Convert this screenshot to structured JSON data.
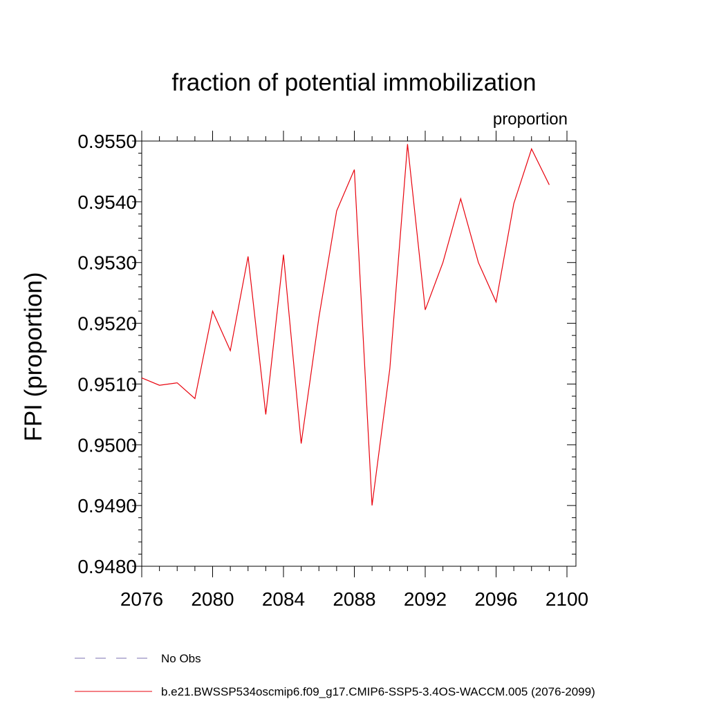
{
  "chart_data": {
    "type": "line",
    "title": "fraction of potential immobilization",
    "units_label": "proportion",
    "ylabel": "FPI  (proportion)",
    "xlabel": "",
    "xlim": [
      2076,
      2100
    ],
    "ylim": [
      0.948,
      0.955
    ],
    "x_ticks": [
      2076,
      2080,
      2084,
      2088,
      2092,
      2096,
      2100
    ],
    "x_tick_labels": [
      "2076",
      "2080",
      "2084",
      "2088",
      "2092",
      "2096",
      "2100"
    ],
    "y_ticks": [
      0.948,
      0.949,
      0.95,
      0.951,
      0.952,
      0.953,
      0.954,
      0.955
    ],
    "y_tick_labels": [
      "0.9480",
      "0.9490",
      "0.9500",
      "0.9510",
      "0.9520",
      "0.9530",
      "0.9540",
      "0.9550"
    ],
    "series": [
      {
        "name": "b.e21.BWSSP534oscmip6.f09_g17.CMIP6-SSP5-3.4OS-WACCM.005 (2076-2099)",
        "color": "#e8000b",
        "x": [
          2076,
          2077,
          2078,
          2079,
          2080,
          2081,
          2082,
          2083,
          2084,
          2085,
          2086,
          2087,
          2088,
          2089,
          2090,
          2091,
          2092,
          2093,
          2094,
          2095,
          2096,
          2097,
          2098,
          2099
        ],
        "values": [
          0.9511,
          0.95098,
          0.95102,
          0.95076,
          0.9522,
          0.95155,
          0.9531,
          0.9505,
          0.95313,
          0.95002,
          0.9521,
          0.95385,
          0.95453,
          0.949,
          0.95125,
          0.95495,
          0.95222,
          0.953,
          0.95405,
          0.953,
          0.95235,
          0.95397,
          0.95487,
          0.95428
        ]
      }
    ],
    "legend": [
      {
        "label": "No Obs",
        "style": "dashed",
        "color": "#7b6fb0"
      },
      {
        "label": "b.e21.BWSSP534oscmip6.f09_g17.CMIP6-SSP5-3.4OS-WACCM.005 (2076-2099)",
        "style": "solid",
        "color": "#e8000b"
      }
    ]
  }
}
